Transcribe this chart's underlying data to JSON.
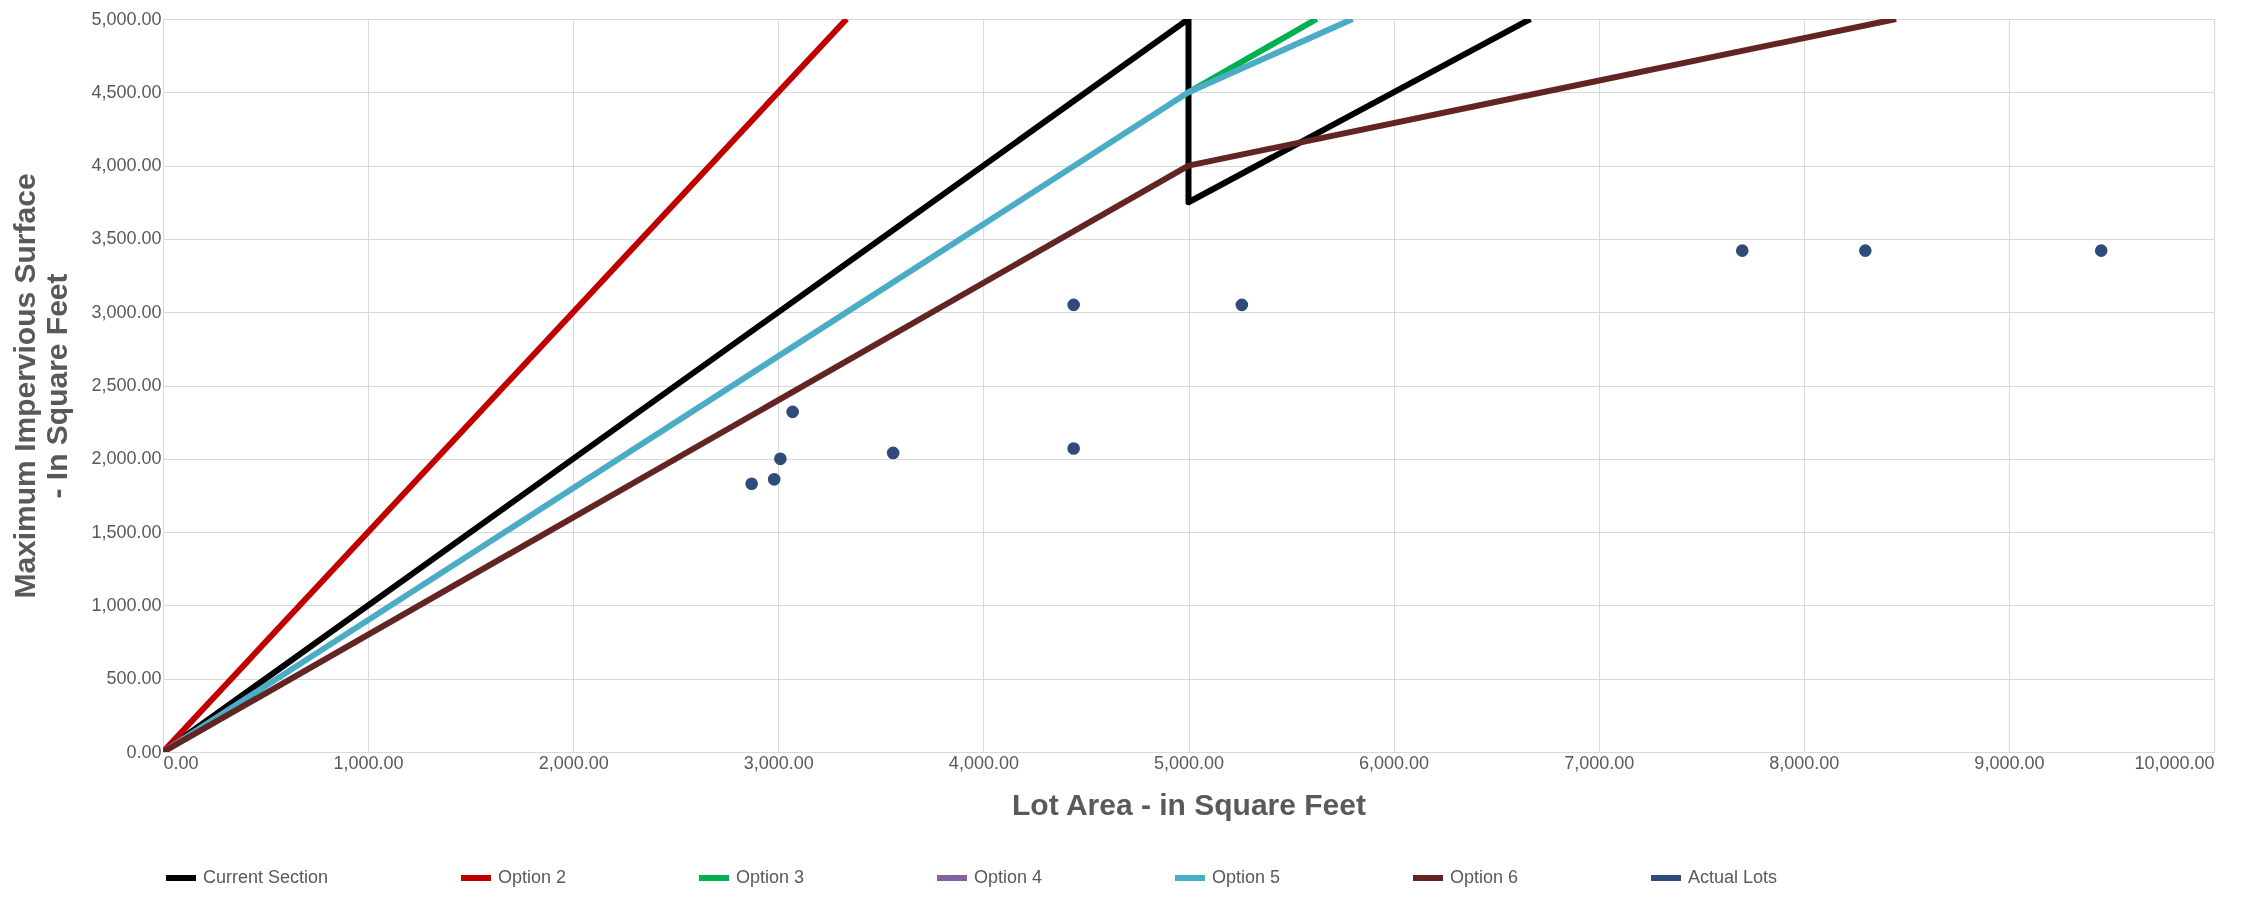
{
  "chart_data": {
    "type": "line",
    "xlabel": "Lot Area - in Square Feet",
    "ylabel": "Maximum Impervious Surface - In Square Feet",
    "xlim": [
      0,
      10000
    ],
    "ylim": [
      0,
      5000
    ],
    "xticks": [
      {
        "value": 0,
        "label": "0.00"
      },
      {
        "value": 1000,
        "label": "1,000.00"
      },
      {
        "value": 2000,
        "label": "2,000.00"
      },
      {
        "value": 3000,
        "label": "3,000.00"
      },
      {
        "value": 4000,
        "label": "4,000.00"
      },
      {
        "value": 5000,
        "label": "5,000.00"
      },
      {
        "value": 6000,
        "label": "6,000.00"
      },
      {
        "value": 7000,
        "label": "7,000.00"
      },
      {
        "value": 8000,
        "label": "8,000.00"
      },
      {
        "value": 9000,
        "label": "9,000.00"
      },
      {
        "value": 10000,
        "label": "10,000.00"
      }
    ],
    "yticks": [
      {
        "value": 0,
        "label": "0.00"
      },
      {
        "value": 500,
        "label": "500.00"
      },
      {
        "value": 1000,
        "label": "1,000.00"
      },
      {
        "value": 1500,
        "label": "1,500.00"
      },
      {
        "value": 2000,
        "label": "2,000.00"
      },
      {
        "value": 2500,
        "label": "2,500.00"
      },
      {
        "value": 3000,
        "label": "3,000.00"
      },
      {
        "value": 3500,
        "label": "3,500.00"
      },
      {
        "value": 4000,
        "label": "4,000.00"
      },
      {
        "value": 4500,
        "label": "4,500.00"
      },
      {
        "value": 5000,
        "label": "5,000.00"
      }
    ],
    "grid": true,
    "legend": "bottom",
    "marker": "none",
    "line_style": "solid",
    "series": [
      {
        "name": "Current Section",
        "color": "#000000",
        "x": [
          0,
          5000,
          5000,
          6667
        ],
        "values": [
          0,
          5000,
          3750,
          5000
        ]
      },
      {
        "name": "Option 2",
        "color": "#c00000",
        "x": [
          0,
          3333
        ],
        "values": [
          0,
          5000
        ]
      },
      {
        "name": "Option 3",
        "color": "#00b050",
        "x": [
          5000,
          5625
        ],
        "values": [
          4500,
          5000
        ]
      },
      {
        "name": "Option 4",
        "color": "#8064a2"
      },
      {
        "name": "Option 5",
        "color": "#4bacc6",
        "x": [
          0,
          5000,
          5800
        ],
        "values": [
          0,
          4500,
          5000
        ]
      },
      {
        "name": "Option 6",
        "color": "#632523",
        "x": [
          0,
          5000,
          8450
        ],
        "values": [
          0,
          4000,
          5000
        ]
      },
      {
        "name": "Actual Lots",
        "type": "scatter",
        "marker": "circle",
        "color": "#2f4b7c",
        "x": [
          2870,
          2980,
          3010,
          3070,
          3560,
          4440,
          4440,
          5260,
          7700,
          8300,
          9450
        ],
        "values": [
          1830,
          1860,
          2000,
          2320,
          2040,
          3050,
          2070,
          3050,
          3420,
          3420,
          3420
        ]
      }
    ]
  }
}
